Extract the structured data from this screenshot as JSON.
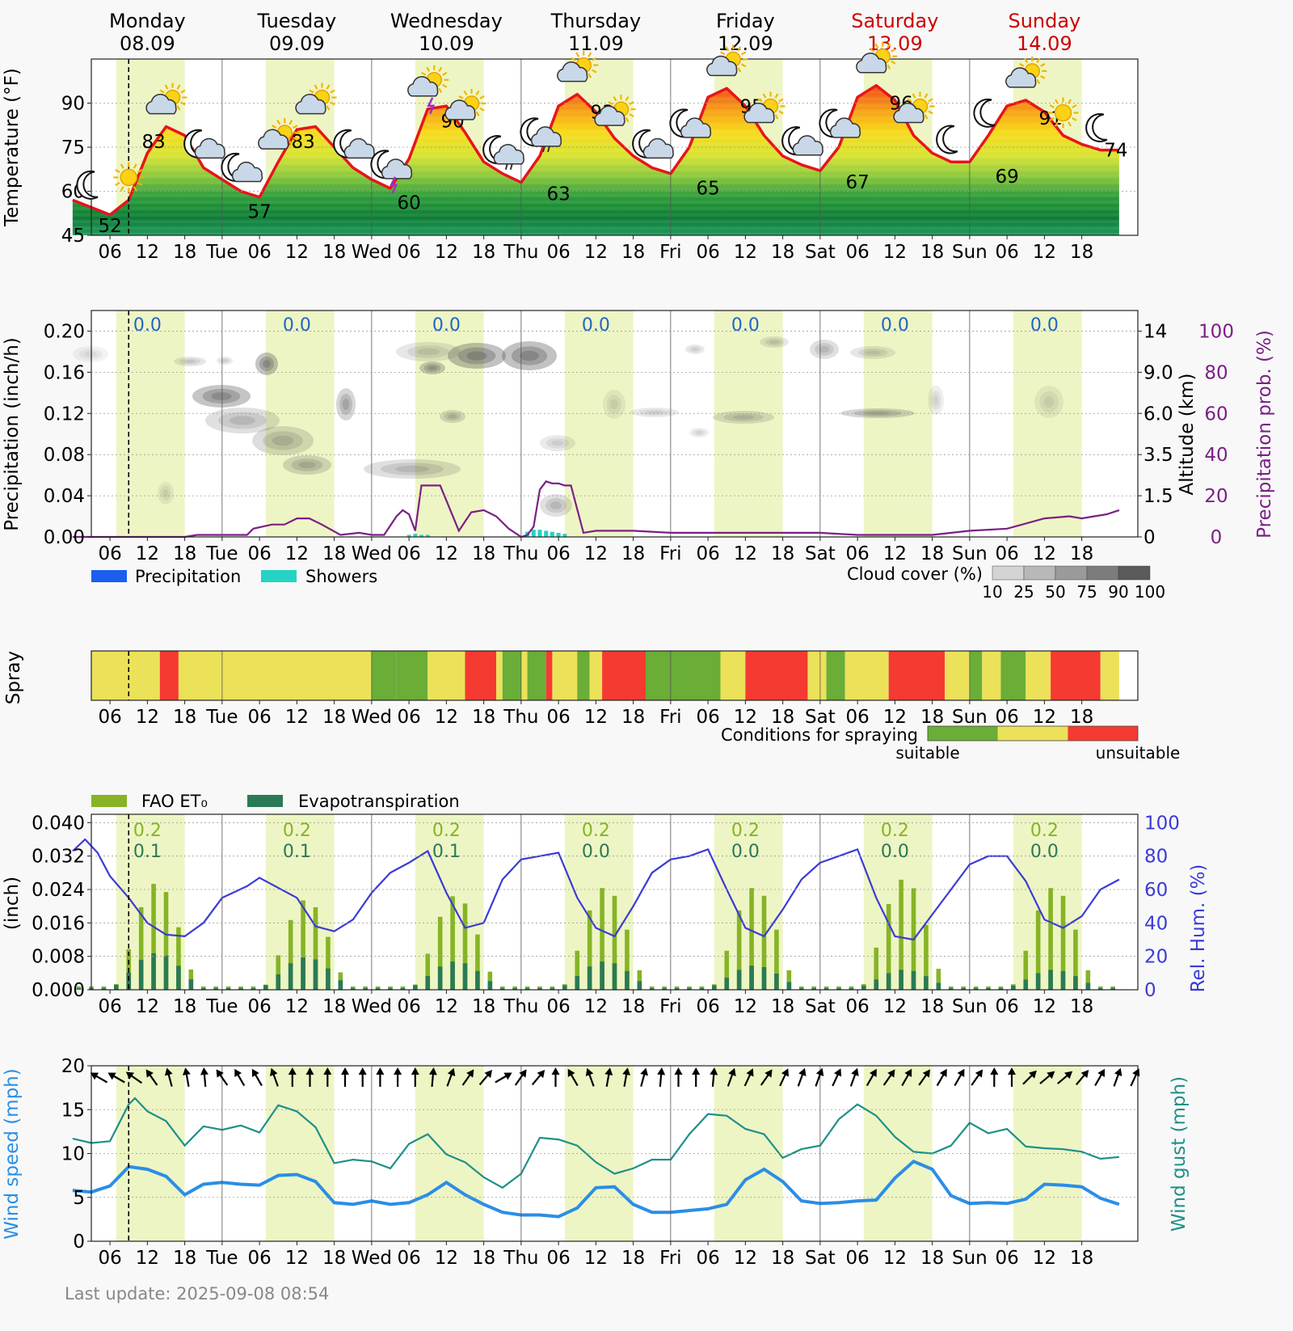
{
  "days": [
    {
      "name": "Monday",
      "date": "08.09",
      "weekend": false
    },
    {
      "name": "Tuesday",
      "date": "09.09",
      "weekend": false
    },
    {
      "name": "Wednesday",
      "date": "10.09",
      "weekend": false
    },
    {
      "name": "Thursday",
      "date": "11.09",
      "weekend": false
    },
    {
      "name": "Friday",
      "date": "12.09",
      "weekend": false
    },
    {
      "name": "Saturday",
      "date": "13.09",
      "weekend": true
    },
    {
      "name": "Sunday",
      "date": "14.09",
      "weekend": true
    }
  ],
  "hour_ticks": [
    "06",
    "12",
    "18",
    "Tue",
    "06",
    "12",
    "18",
    "Wed",
    "06",
    "12",
    "18",
    "Thu",
    "06",
    "12",
    "18",
    "Fri",
    "06",
    "12",
    "18",
    "Sat",
    "06",
    "12",
    "18",
    "Sun",
    "06",
    "12",
    "18"
  ],
  "colors": {
    "weekend": "#cc0000",
    "temp_line": "#e8141a",
    "daylight": "#eef5c4",
    "precip_prob": "#7b1f86",
    "wind_speed": "#2a8ee6",
    "wind_gust": "#1e9089",
    "humidity": "#3b3bd6",
    "et0": "#86b425",
    "evapo": "#2a7a55",
    "spray_suitable": "#6aad37",
    "spray_medium": "#ebe25a",
    "spray_unsuitable": "#f53a32",
    "precip_value": "#2166c9"
  },
  "chart_data": [
    {
      "type": "line",
      "panel": "temperature",
      "ylabel": "Temperature (°F)",
      "ylim": [
        45,
        105
      ],
      "yticks": [
        "45",
        "60",
        "75",
        "90"
      ],
      "x_hours": [
        0,
        6,
        9,
        12,
        15,
        18,
        21,
        24,
        27,
        30,
        33,
        36,
        39,
        42,
        45,
        48,
        51,
        54,
        57,
        60,
        63,
        66,
        69,
        72,
        75,
        78,
        81,
        84,
        87,
        90,
        93,
        96,
        99,
        102,
        105,
        108,
        111,
        114,
        117,
        120,
        123,
        126,
        129,
        132,
        135,
        138,
        141,
        144,
        147,
        150,
        153,
        156,
        159,
        162,
        165,
        168
      ],
      "y": [
        57,
        52,
        57,
        73,
        82,
        79,
        68,
        64,
        60,
        58,
        70,
        81,
        82,
        75,
        68,
        64,
        61,
        71,
        88,
        89,
        80,
        70,
        66,
        63,
        72,
        89,
        93,
        87,
        78,
        72,
        68,
        66,
        75,
        92,
        95,
        89,
        79,
        72,
        69,
        67,
        75,
        92,
        96,
        91,
        79,
        73,
        70,
        70,
        79,
        89,
        91,
        87,
        79,
        76,
        74,
        74
      ],
      "labels": [
        {
          "hour": 6,
          "value": "52",
          "kind": "min"
        },
        {
          "hour": 13,
          "value": "83",
          "kind": "max"
        },
        {
          "hour": 30,
          "value": "57",
          "kind": "min"
        },
        {
          "hour": 37,
          "value": "83",
          "kind": "max"
        },
        {
          "hour": 54,
          "value": "60",
          "kind": "min"
        },
        {
          "hour": 61,
          "value": "90",
          "kind": "max"
        },
        {
          "hour": 78,
          "value": "63",
          "kind": "min"
        },
        {
          "hour": 85,
          "value": "93",
          "kind": "max"
        },
        {
          "hour": 102,
          "value": "65",
          "kind": "min"
        },
        {
          "hour": 109,
          "value": "95",
          "kind": "max"
        },
        {
          "hour": 126,
          "value": "67",
          "kind": "min"
        },
        {
          "hour": 133,
          "value": "96",
          "kind": "max"
        },
        {
          "hour": 150,
          "value": "69",
          "kind": "min"
        },
        {
          "hour": 157,
          "value": "91",
          "kind": "max"
        },
        {
          "hour": 168,
          "value": "74",
          "kind": "end"
        }
      ],
      "symbols": [
        {
          "hour": 3,
          "icon": "moon"
        },
        {
          "hour": 9,
          "icon": "sun"
        },
        {
          "hour": 15,
          "icon": "sun-cloud"
        },
        {
          "hour": 21,
          "icon": "moon-cloud"
        },
        {
          "hour": 27,
          "icon": "moon-cloud"
        },
        {
          "hour": 33,
          "icon": "sun-cloud"
        },
        {
          "hour": 39,
          "icon": "sun-cloud"
        },
        {
          "hour": 45,
          "icon": "moon-cloud"
        },
        {
          "hour": 51,
          "icon": "moon-thunder"
        },
        {
          "hour": 57,
          "icon": "sun-thunder"
        },
        {
          "hour": 63,
          "icon": "sun-cloud"
        },
        {
          "hour": 69,
          "icon": "moon-rain"
        },
        {
          "hour": 75,
          "icon": "moon-rain"
        },
        {
          "hour": 81,
          "icon": "sun-cloud"
        },
        {
          "hour": 87,
          "icon": "sun-cloud"
        },
        {
          "hour": 93,
          "icon": "moon-cloud"
        },
        {
          "hour": 99,
          "icon": "moon-cloud"
        },
        {
          "hour": 105,
          "icon": "sun-cloud"
        },
        {
          "hour": 111,
          "icon": "sun-cloud"
        },
        {
          "hour": 117,
          "icon": "moon-cloud"
        },
        {
          "hour": 123,
          "icon": "moon-cloud"
        },
        {
          "hour": 129,
          "icon": "sun-cloud"
        },
        {
          "hour": 135,
          "icon": "sun-cloud"
        },
        {
          "hour": 141,
          "icon": "moon"
        },
        {
          "hour": 147,
          "icon": "moon"
        },
        {
          "hour": 153,
          "icon": "sun-cloud"
        },
        {
          "hour": 159,
          "icon": "sun"
        },
        {
          "hour": 165,
          "icon": "moon"
        }
      ]
    },
    {
      "type": "line",
      "panel": "precipitation",
      "ylabel": "Precipitation (inch/h)",
      "ylim": [
        0,
        0.22
      ],
      "yticks": [
        "0.00",
        "0.04",
        "0.08",
        "0.12",
        "0.16",
        "0.20"
      ],
      "altitude_label": "Altitude (km)",
      "altitude_ticks": [
        "0",
        "1.5",
        "3.5",
        "6.0",
        "9.0",
        "14"
      ],
      "prob_label": "Precipitation prob. (%)",
      "prob_ticks": [
        "0",
        "20",
        "40",
        "60",
        "80",
        "100"
      ],
      "daily_totals": [
        "0.0",
        "0.0",
        "0.0",
        "0.0",
        "0.0",
        "0.0",
        "0.0"
      ],
      "prob_x": [
        0,
        18,
        20,
        24,
        28,
        29,
        32,
        34,
        36,
        38,
        40,
        43,
        46,
        48,
        50,
        52,
        53,
        54,
        55,
        56,
        57,
        58,
        59,
        62,
        64,
        66,
        68,
        70,
        72,
        73,
        74,
        75,
        76,
        77,
        78,
        79,
        80,
        82,
        84,
        90,
        96,
        102,
        108,
        114,
        120,
        126,
        132,
        138,
        144,
        150,
        156,
        160,
        162,
        164,
        166,
        168
      ],
      "prob_y": [
        0,
        0,
        1,
        1,
        1,
        4,
        6,
        6,
        9,
        9,
        6,
        1,
        2,
        1,
        1,
        10,
        13,
        11,
        3,
        25,
        25,
        25,
        25,
        3,
        12,
        13,
        10,
        4,
        0,
        1,
        5,
        23,
        27,
        26,
        26,
        25,
        25,
        2,
        3,
        3,
        2,
        2,
        2,
        2,
        2,
        1,
        1,
        1,
        3,
        4,
        9,
        10,
        9,
        10,
        11,
        13
      ],
      "showers": [
        {
          "hour": 54,
          "value": 0.002
        },
        {
          "hour": 55,
          "value": 0.003
        },
        {
          "hour": 56,
          "value": 0.002
        },
        {
          "hour": 57,
          "value": 0.002
        },
        {
          "hour": 73,
          "value": 0.005
        },
        {
          "hour": 74,
          "value": 0.007
        },
        {
          "hour": 75,
          "value": 0.007
        },
        {
          "hour": 76,
          "value": 0.006
        },
        {
          "hour": 77,
          "value": 0.005
        },
        {
          "hour": 78,
          "value": 0.004
        },
        {
          "hour": 79,
          "value": 0.003
        }
      ],
      "legend": [
        "Precipitation",
        "Showers"
      ],
      "cloud_legend_title": "Cloud cover (%)",
      "cloud_legend_ticks": [
        "10",
        "25",
        "50",
        "75",
        "90",
        "100"
      ]
    },
    {
      "type": "heatmap",
      "panel": "spray",
      "ylabel": "Spray",
      "x_hours": [
        0,
        14,
        17,
        24,
        48,
        52,
        57,
        63,
        68,
        69,
        72,
        73,
        76,
        77,
        81,
        83,
        85,
        92,
        96,
        104,
        108,
        118,
        121,
        124,
        131,
        140,
        144,
        146,
        149,
        153,
        157,
        165,
        168
      ],
      "conditions": [
        "medium",
        "unsuitable",
        "medium",
        "medium",
        "suitable",
        "suitable",
        "medium",
        "unsuitable",
        "medium",
        "suitable",
        "medium",
        "suitable",
        "unsuitable",
        "medium",
        "suitable",
        "medium",
        "unsuitable",
        "suitable",
        "suitable",
        "medium",
        "unsuitable",
        "medium",
        "suitable",
        "medium",
        "unsuitable",
        "medium",
        "suitable",
        "medium",
        "suitable",
        "medium",
        "unsuitable",
        "medium"
      ],
      "legend_title": "Conditions for spraying",
      "legend_low": "suitable",
      "legend_high": "unsuitable"
    },
    {
      "type": "bar",
      "panel": "evapotranspiration",
      "ylabel": "(inch)",
      "ylim": [
        0,
        0.042
      ],
      "yticks": [
        "0.000",
        "0.008",
        "0.016",
        "0.024",
        "0.032",
        "0.040"
      ],
      "hum_label": "Rel. Hum. (%)",
      "hum_ticks": [
        "0",
        "20",
        "40",
        "60",
        "80",
        "100"
      ],
      "legend": [
        "FAO ET₀",
        "Evapotranspiration"
      ],
      "daily_et0": [
        "0.2",
        "0.2",
        "0.2",
        "0.2",
        "0.2",
        "0.2",
        "0.2"
      ],
      "daily_evapo": [
        "0.1",
        "0.1",
        "0.1",
        "0.0",
        "0.0",
        "0.0",
        "0.0"
      ],
      "et0_peaks": [
        0.025,
        0.021,
        0.022,
        0.024,
        0.024,
        0.026,
        0.024
      ],
      "evapo_peaks": [
        0.008,
        0.007,
        0.006,
        0.006,
        0.005,
        0.004,
        0.004
      ],
      "hum_x": [
        0,
        2,
        4,
        6,
        9,
        12,
        15,
        18,
        21,
        24,
        28,
        30,
        36,
        39,
        42,
        45,
        48,
        51,
        54,
        57,
        60,
        63,
        66,
        69,
        72,
        75,
        78,
        81,
        84,
        87,
        90,
        93,
        96,
        99,
        102,
        105,
        108,
        111,
        114,
        117,
        120,
        123,
        126,
        129,
        132,
        135,
        138,
        141,
        144,
        147,
        150,
        153,
        156,
        159,
        162,
        165,
        168
      ],
      "hum_y": [
        83,
        90,
        82,
        68,
        55,
        40,
        33,
        32,
        40,
        55,
        62,
        67,
        55,
        38,
        35,
        42,
        58,
        70,
        76,
        83,
        58,
        37,
        40,
        66,
        78,
        80,
        82,
        55,
        37,
        32,
        50,
        70,
        78,
        80,
        84,
        60,
        37,
        32,
        48,
        66,
        76,
        80,
        84,
        55,
        32,
        30,
        45,
        60,
        75,
        80,
        80,
        65,
        42,
        37,
        44,
        60,
        66
      ]
    },
    {
      "type": "line",
      "panel": "wind",
      "ylabel": "Wind speed (mph)",
      "ylabel_right": "Wind gust (mph)",
      "ylim": [
        0,
        20
      ],
      "yticks": [
        "0",
        "5",
        "10",
        "15",
        "20"
      ],
      "speed_x": [
        0,
        3,
        6,
        9,
        12,
        15,
        18,
        21,
        24,
        27,
        30,
        33,
        36,
        39,
        42,
        45,
        48,
        51,
        54,
        57,
        60,
        63,
        66,
        69,
        72,
        75,
        78,
        81,
        84,
        87,
        90,
        93,
        96,
        99,
        102,
        105,
        108,
        111,
        114,
        117,
        120,
        123,
        126,
        129,
        132,
        135,
        138,
        141,
        144,
        147,
        150,
        153,
        156,
        159,
        162,
        165,
        168
      ],
      "speed_y": [
        5.8,
        5.6,
        6.3,
        8.5,
        8.2,
        7.4,
        5.3,
        6.5,
        6.7,
        6.5,
        6.4,
        7.5,
        7.6,
        6.8,
        4.4,
        4.2,
        4.6,
        4.2,
        4.4,
        5.3,
        6.7,
        5.3,
        4.2,
        3.3,
        3.0,
        3.0,
        2.8,
        3.8,
        6.1,
        6.2,
        4.2,
        3.3,
        3.3,
        3.5,
        3.7,
        4.2,
        7.0,
        8.2,
        6.8,
        4.6,
        4.3,
        4.4,
        4.6,
        4.7,
        7.2,
        9.1,
        8.2,
        5.2,
        4.3,
        4.4,
        4.3,
        4.8,
        6.5,
        6.4,
        6.2,
        4.9,
        4.2
      ],
      "gust_x": [
        0,
        3,
        6,
        9,
        10,
        12,
        15,
        18,
        21,
        24,
        27,
        30,
        33,
        36,
        39,
        42,
        45,
        48,
        51,
        54,
        57,
        60,
        63,
        66,
        69,
        72,
        75,
        78,
        81,
        84,
        87,
        90,
        93,
        96,
        99,
        102,
        105,
        108,
        111,
        114,
        117,
        120,
        123,
        126,
        129,
        132,
        135,
        138,
        141,
        144,
        147,
        150,
        153,
        156,
        159,
        162,
        165,
        168
      ],
      "gust_y": [
        11.7,
        11.2,
        11.4,
        15.6,
        16.3,
        14.8,
        13.7,
        10.9,
        13.1,
        12.7,
        13.2,
        12.4,
        15.5,
        14.8,
        13.0,
        8.9,
        9.3,
        9.1,
        8.3,
        11.1,
        12.2,
        9.9,
        9.0,
        7.3,
        6.1,
        7.7,
        11.8,
        11.6,
        10.9,
        9.0,
        7.7,
        8.3,
        9.3,
        9.3,
        12.2,
        14.5,
        14.3,
        12.8,
        12.2,
        9.5,
        10.5,
        10.9,
        13.9,
        15.6,
        14.3,
        11.9,
        10.2,
        10.0,
        10.9,
        13.5,
        12.3,
        12.8,
        10.8,
        10.6,
        10.5,
        10.2,
        9.4,
        9.6
      ],
      "arrows_dir_deg": [
        300,
        300,
        305,
        325,
        345,
        350,
        355,
        325,
        330,
        330,
        340,
        0,
        0,
        0,
        0,
        0,
        0,
        0,
        0,
        5,
        20,
        35,
        40,
        60,
        35,
        40,
        0,
        330,
        340,
        10,
        10,
        15,
        5,
        0,
        0,
        5,
        20,
        25,
        35,
        25,
        20,
        20,
        25,
        20,
        30,
        35,
        30,
        35,
        30,
        30,
        35,
        0,
        0,
        45,
        50,
        50,
        40,
        30,
        20,
        25
      ]
    }
  ],
  "last_update": "Last update: 2025-09-08 08:54"
}
